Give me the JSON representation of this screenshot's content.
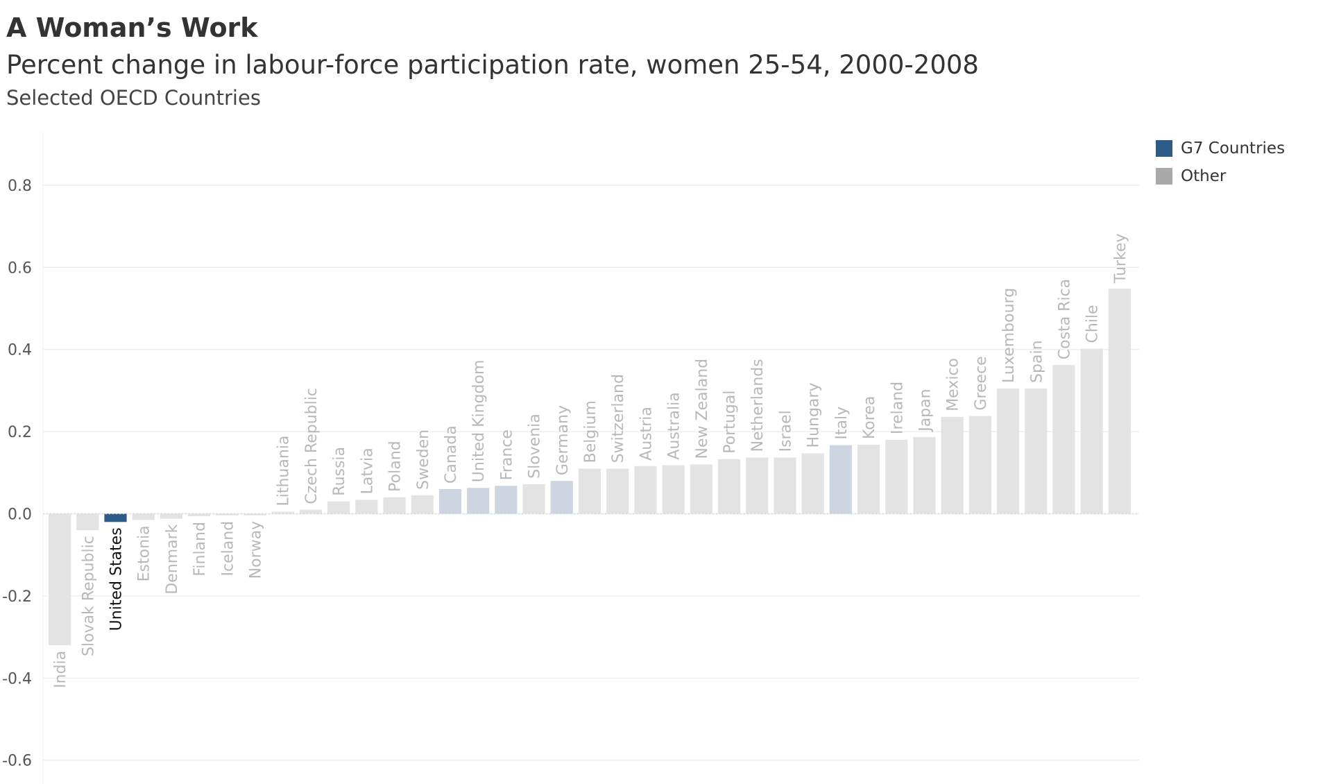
{
  "header": {
    "title": "A Woman’s Work",
    "subtitle": "Percent change in labour-force participation rate, women 25-54, 2000-2008",
    "subsubtitle": "Selected OECD Countries"
  },
  "legend": {
    "items": [
      {
        "label": "G7 Countries",
        "color": "#2e5a87"
      },
      {
        "label": "Other",
        "color": "#a9a9a9"
      }
    ]
  },
  "colors": {
    "other_bar": "#e3e3e3",
    "g7_bar_faded": "#cdd6e0",
    "g7_bar_highlight": "#2e5a87",
    "label_faded": "#b8b8b8",
    "label_highlight": "#111111",
    "grid": "#ececec",
    "tick_text": "#555555"
  },
  "chart_data": {
    "type": "bar",
    "title": "A Woman’s Work",
    "subtitle": "Percent change in labour-force participation rate, women 25-54, 2000-2008",
    "xlabel": "",
    "ylabel": "",
    "ylim": [
      -0.68,
      0.93
    ],
    "yticks": [
      -0.6,
      -0.4,
      -0.2,
      0.0,
      0.2,
      0.4,
      0.6,
      0.8
    ],
    "ytick_labels": [
      "-0.6",
      "-0.4",
      "-0.2",
      "0.0",
      "0.2",
      "0.4",
      "0.6",
      "0.8"
    ],
    "grid": true,
    "legend_position": "top-right",
    "highlighted": "United States",
    "categories": [
      "India",
      "Slovak Republic",
      "United States",
      "Estonia",
      "Denmark",
      "Finland",
      "Iceland",
      "Norway",
      "Lithuania",
      "Czech Republic",
      "Russia",
      "Latvia",
      "Poland",
      "Sweden",
      "Canada",
      "United Kingdom",
      "France",
      "Slovenia",
      "Germany",
      "Belgium",
      "Switzerland",
      "Austria",
      "Australia",
      "New Zealand",
      "Portugal",
      "Netherlands",
      "Israel",
      "Hungary",
      "Italy",
      "Korea",
      "Ireland",
      "Japan",
      "Mexico",
      "Greece",
      "Luxembourg",
      "Spain",
      "Costa Rica",
      "Chile",
      "Turkey"
    ],
    "values": [
      -0.32,
      -0.04,
      -0.02,
      -0.015,
      -0.012,
      -0.006,
      -0.004,
      -0.004,
      0.005,
      0.01,
      0.03,
      0.034,
      0.04,
      0.045,
      0.06,
      0.063,
      0.068,
      0.072,
      0.08,
      0.11,
      0.11,
      0.116,
      0.118,
      0.12,
      0.133,
      0.137,
      0.137,
      0.147,
      0.167,
      0.168,
      0.18,
      0.187,
      0.236,
      0.238,
      0.305,
      0.305,
      0.362,
      0.402,
      0.548
    ],
    "groups": [
      "Other",
      "Other",
      "G7 Countries",
      "Other",
      "Other",
      "Other",
      "Other",
      "Other",
      "Other",
      "Other",
      "Other",
      "Other",
      "Other",
      "Other",
      "G7 Countries",
      "G7 Countries",
      "G7 Countries",
      "Other",
      "G7 Countries",
      "Other",
      "Other",
      "Other",
      "Other",
      "Other",
      "Other",
      "Other",
      "Other",
      "Other",
      "G7 Countries",
      "Other",
      "Other",
      "Other",
      "Other",
      "Other",
      "Other",
      "Other",
      "Other",
      "Other",
      "Other"
    ]
  }
}
